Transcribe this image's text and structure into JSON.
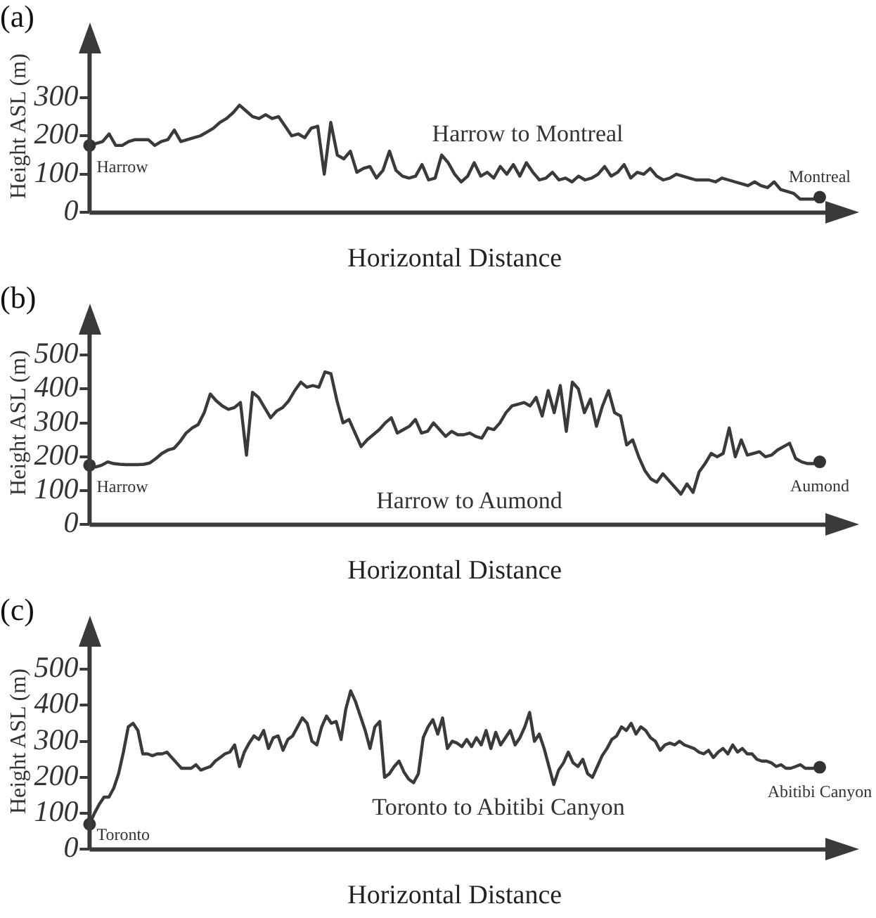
{
  "chart_data": [
    {
      "type": "line",
      "title": "(a)",
      "xlabel": "Horizontal Distance",
      "ylabel": "Height ASL (m)",
      "annotations": [
        "Harrow to Montreal",
        "Harrow",
        "Montreal"
      ],
      "color": "#3a3a3a",
      "grid": false,
      "legend": false,
      "tick_labels": "y",
      "ylim": [
        0,
        450
      ],
      "yticks": [
        0,
        100,
        200,
        300
      ],
      "categories": [
        null,
        null,
        null,
        null,
        null,
        null,
        null,
        null,
        null,
        null,
        null,
        null,
        null,
        null,
        null,
        null,
        null,
        null,
        null,
        null,
        null,
        null,
        null,
        null,
        null,
        null,
        null,
        null,
        null,
        null,
        null,
        null,
        null,
        null,
        null,
        null,
        null,
        null,
        null,
        null,
        null,
        null,
        null,
        null,
        null,
        null,
        null,
        null,
        null,
        null,
        null,
        null,
        null,
        null,
        null,
        null,
        null,
        null,
        null,
        null,
        null,
        null,
        null,
        null,
        null,
        null,
        null,
        null,
        null,
        null,
        null,
        null,
        null,
        null,
        null,
        null,
        null,
        null,
        null,
        null,
        null,
        null,
        null,
        null,
        null,
        null,
        null,
        null,
        null,
        null,
        null,
        null,
        null,
        null,
        null,
        null,
        null,
        null,
        null,
        null,
        null,
        null,
        null,
        null,
        null,
        null,
        null,
        null,
        null,
        null,
        null,
        null,
        null
      ],
      "values": [
        175,
        180,
        185,
        205,
        175,
        175,
        185,
        190,
        190,
        190,
        175,
        185,
        190,
        215,
        185,
        190,
        195,
        200,
        210,
        220,
        235,
        245,
        260,
        280,
        265,
        250,
        245,
        255,
        245,
        250,
        225,
        200,
        205,
        195,
        220,
        225,
        100,
        235,
        150,
        140,
        160,
        105,
        115,
        120,
        90,
        110,
        160,
        110,
        95,
        90,
        95,
        125,
        85,
        90,
        150,
        130,
        100,
        80,
        95,
        130,
        95,
        105,
        90,
        120,
        100,
        125,
        95,
        130,
        105,
        85,
        90,
        105,
        85,
        90,
        80,
        95,
        85,
        90,
        100,
        120,
        95,
        105,
        125,
        90,
        105,
        100,
        115,
        95,
        85,
        90,
        100,
        95,
        90,
        85,
        85,
        85,
        80,
        90,
        85,
        80,
        75,
        70,
        80,
        70,
        65,
        80,
        60,
        55,
        50,
        35,
        35,
        35,
        40
      ]
    },
    {
      "type": "line",
      "title": "(b)",
      "xlabel": "Horizontal Distance",
      "ylabel": "Height ASL (m)",
      "annotations": [
        "Harrow to Aumond",
        "Harrow",
        "Aumond"
      ],
      "color": "#3a3a3a",
      "grid": false,
      "legend": false,
      "tick_labels": "y",
      "ylim": [
        0,
        600
      ],
      "yticks": [
        0,
        100,
        200,
        300,
        400,
        500
      ],
      "categories": [
        null,
        null,
        null,
        null,
        null,
        null,
        null,
        null,
        null,
        null,
        null,
        null,
        null,
        null,
        null,
        null,
        null,
        null,
        null,
        null,
        null,
        null,
        null,
        null,
        null,
        null,
        null,
        null,
        null,
        null,
        null,
        null,
        null,
        null,
        null,
        null,
        null,
        null,
        null,
        null,
        null,
        null,
        null,
        null,
        null,
        null,
        null,
        null,
        null,
        null,
        null,
        null,
        null,
        null,
        null,
        null,
        null,
        null,
        null,
        null,
        null,
        null,
        null,
        null,
        null,
        null,
        null,
        null,
        null,
        null,
        null,
        null,
        null,
        null,
        null,
        null,
        null,
        null,
        null,
        null,
        null,
        null,
        null,
        null,
        null,
        null,
        null,
        null,
        null,
        null,
        null,
        null,
        null,
        null,
        null,
        null,
        null,
        null,
        null,
        null,
        null,
        null,
        null,
        null,
        null,
        null,
        null,
        null,
        null,
        null,
        null,
        null,
        null,
        null,
        null,
        null,
        null,
        null,
        null,
        null,
        null,
        null
      ],
      "values": [
        175,
        170,
        175,
        185,
        180,
        178,
        177,
        177,
        177,
        178,
        182,
        195,
        210,
        220,
        225,
        245,
        270,
        285,
        295,
        330,
        385,
        365,
        350,
        340,
        345,
        360,
        205,
        390,
        375,
        345,
        315,
        335,
        345,
        365,
        395,
        420,
        405,
        410,
        405,
        450,
        445,
        365,
        300,
        310,
        270,
        230,
        250,
        265,
        280,
        300,
        315,
        270,
        280,
        290,
        310,
        270,
        275,
        300,
        280,
        260,
        275,
        265,
        265,
        270,
        260,
        255,
        285,
        280,
        300,
        330,
        350,
        355,
        360,
        350,
        375,
        320,
        395,
        330,
        410,
        275,
        420,
        400,
        330,
        370,
        290,
        350,
        395,
        330,
        320,
        235,
        250,
        200,
        160,
        135,
        125,
        150,
        130,
        110,
        90,
        120,
        95,
        155,
        180,
        210,
        200,
        210,
        285,
        200,
        250,
        205,
        210,
        215,
        200,
        205,
        220,
        230,
        240,
        195,
        185,
        180,
        180,
        185
      ]
    },
    {
      "type": "line",
      "title": "(c)",
      "xlabel": "Horizontal Distance",
      "ylabel": "Height ASL (m)",
      "annotations": [
        "Toronto to Abitibi Canyon",
        "Toronto",
        "Abitibi Canyon"
      ],
      "color": "#3a3a3a",
      "grid": false,
      "legend": false,
      "tick_labels": "y",
      "ylim": [
        0,
        600
      ],
      "yticks": [
        0,
        100,
        200,
        300,
        400,
        500
      ],
      "categories": [
        null,
        null,
        null,
        null,
        null,
        null,
        null,
        null,
        null,
        null,
        null,
        null,
        null,
        null,
        null,
        null,
        null,
        null,
        null,
        null,
        null,
        null,
        null,
        null,
        null,
        null,
        null,
        null,
        null,
        null,
        null,
        null,
        null,
        null,
        null,
        null,
        null,
        null,
        null,
        null,
        null,
        null,
        null,
        null,
        null,
        null,
        null,
        null,
        null,
        null,
        null,
        null,
        null,
        null,
        null,
        null,
        null,
        null,
        null,
        null,
        null,
        null,
        null,
        null,
        null,
        null,
        null,
        null,
        null,
        null,
        null,
        null,
        null,
        null,
        null,
        null,
        null,
        null,
        null,
        null,
        null,
        null,
        null,
        null,
        null,
        null,
        null,
        null,
        null,
        null,
        null,
        null,
        null,
        null,
        null,
        null,
        null,
        null,
        null,
        null,
        null,
        null,
        null,
        null,
        null,
        null,
        null,
        null,
        null,
        null,
        null,
        null,
        null,
        null,
        null,
        null,
        null,
        null,
        null,
        null,
        null,
        null,
        null,
        null,
        null,
        null,
        null,
        null,
        null,
        null,
        null,
        null,
        null,
        null,
        null,
        null,
        null,
        null,
        null,
        null,
        null,
        null,
        null,
        null,
        null,
        null,
        null,
        null,
        null,
        null,
        null,
        null
      ],
      "values": [
        70,
        100,
        125,
        145,
        145,
        170,
        210,
        270,
        340,
        350,
        330,
        265,
        265,
        260,
        265,
        265,
        270,
        255,
        240,
        225,
        225,
        225,
        235,
        220,
        225,
        230,
        245,
        255,
        265,
        270,
        290,
        230,
        270,
        295,
        315,
        305,
        330,
        280,
        310,
        315,
        275,
        305,
        315,
        340,
        365,
        350,
        300,
        290,
        340,
        370,
        350,
        355,
        305,
        390,
        440,
        410,
        370,
        330,
        280,
        340,
        355,
        200,
        210,
        230,
        245,
        215,
        195,
        185,
        210,
        310,
        340,
        360,
        320,
        365,
        280,
        300,
        295,
        285,
        305,
        285,
        310,
        290,
        330,
        280,
        325,
        290,
        310,
        330,
        290,
        310,
        340,
        380,
        300,
        320,
        280,
        230,
        180,
        220,
        240,
        270,
        240,
        230,
        250,
        210,
        200,
        230,
        260,
        280,
        305,
        315,
        340,
        330,
        350,
        320,
        340,
        330,
        310,
        300,
        275,
        290,
        295,
        290,
        300,
        290,
        285,
        280,
        270,
        265,
        275,
        255,
        270,
        280,
        265,
        290,
        270,
        280,
        265,
        265,
        250,
        245,
        245,
        240,
        230,
        235,
        225,
        225,
        230,
        235,
        225,
        225,
        225,
        228
      ]
    }
  ]
}
